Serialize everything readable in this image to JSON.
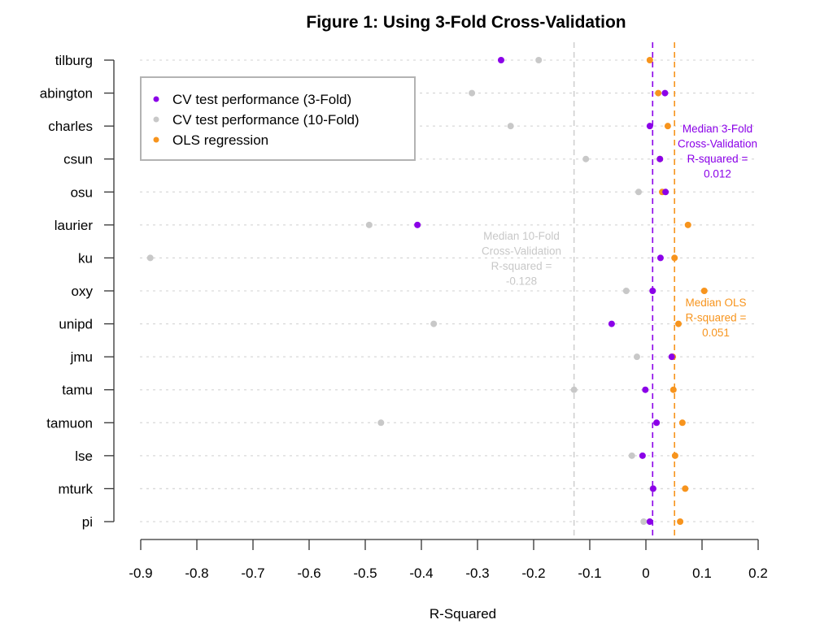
{
  "chart_data": {
    "type": "scatter",
    "title": "Figure 1: Using 3-Fold Cross-Validation",
    "xlabel": "R-Squared",
    "ylabel": "",
    "xlim": [
      -0.9,
      0.2
    ],
    "xticks": [
      "-0.9",
      "-0.8",
      "-0.7",
      "-0.6",
      "-0.5",
      "-0.4",
      "-0.3",
      "-0.2",
      "-0.1",
      "0",
      "0.1",
      "0.2"
    ],
    "xtick_values": [
      -0.9,
      -0.8,
      -0.7,
      -0.6,
      -0.5,
      -0.4,
      -0.3,
      -0.2,
      -0.1,
      0,
      0.1,
      0.2
    ],
    "grid": "horizontal dotted",
    "categories": [
      "tilburg",
      "abington",
      "charles",
      "csun",
      "osu",
      "laurier",
      "ku",
      "oxy",
      "unipd",
      "jmu",
      "tamu",
      "tamuon",
      "lse",
      "mturk",
      "pi"
    ],
    "series": [
      {
        "name": "CV test performance (10-Fold)",
        "color": "#c8c8c8",
        "values": [
          -0.191,
          -0.31,
          -0.241,
          -0.107,
          -0.013,
          -0.493,
          -0.883,
          -0.035,
          -0.378,
          -0.016,
          -0.128,
          -0.472,
          -0.025,
          0.012,
          -0.004
        ]
      },
      {
        "name": "OLS regression",
        "color": "#f7941d",
        "values": [
          0.007,
          0.022,
          0.039,
          0.025,
          0.029,
          0.075,
          0.051,
          0.104,
          0.058,
          0.048,
          0.049,
          0.065,
          0.052,
          0.07,
          0.061
        ]
      },
      {
        "name": "CV test performance (3-Fold)",
        "color": "#8b00e8",
        "values": [
          -0.258,
          0.034,
          0.007,
          0.025,
          0.035,
          -0.407,
          0.026,
          0.012,
          -0.061,
          0.046,
          -0.001,
          0.019,
          -0.006,
          0.013,
          0.007
        ]
      }
    ],
    "legend": {
      "position": "top-left",
      "entries": [
        {
          "label": "CV test performance (3-Fold)",
          "color": "#8b00e8"
        },
        {
          "label": "CV test performance (10-Fold)",
          "color": "#c8c8c8"
        },
        {
          "label": "OLS regression",
          "color": "#f7941d"
        }
      ]
    },
    "reference_lines": [
      {
        "name": "median-10-fold",
        "value": -0.128,
        "color": "#c8c8c8",
        "label_lines": [
          "Median 10-Fold",
          "Cross-Validation",
          "R-squared =",
          "-0.128"
        ]
      },
      {
        "name": "median-3-fold",
        "value": 0.012,
        "color": "#8b00e8",
        "label_lines": [
          "Median 3-Fold",
          "Cross-Validation",
          "R-squared =",
          "0.012"
        ]
      },
      {
        "name": "median-ols",
        "value": 0.051,
        "color": "#f7941d",
        "label_lines": [
          "Median OLS",
          "R-squared =",
          "0.051"
        ]
      }
    ]
  }
}
